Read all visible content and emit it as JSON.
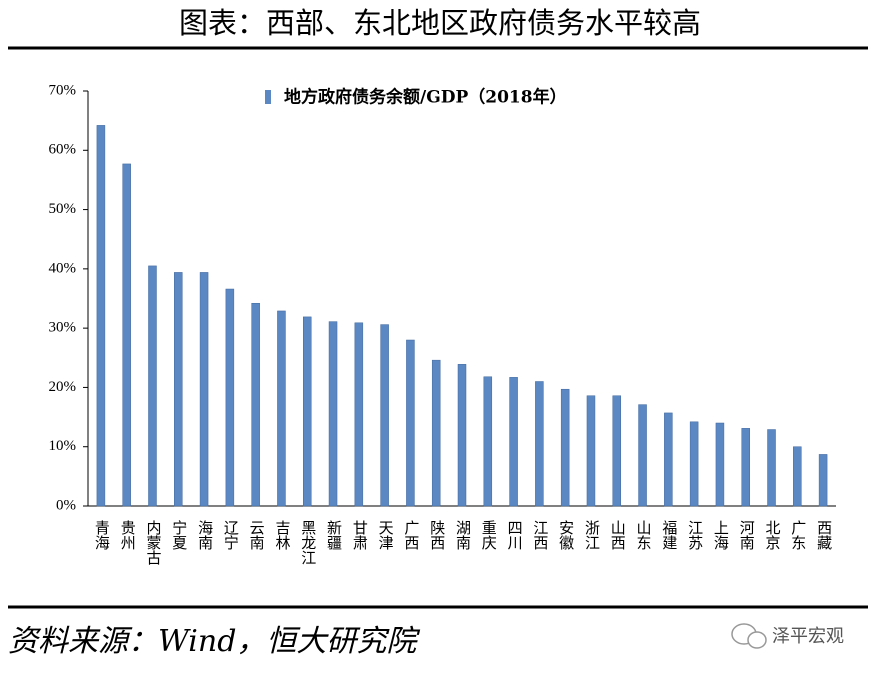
{
  "chart_data": {
    "type": "bar",
    "title": "图表：西部、东北地区政府债务水平较高",
    "categories": [
      "青海",
      "贵州",
      "内蒙古",
      "宁夏",
      "海南",
      "辽宁",
      "云南",
      "吉林",
      "黑龙江",
      "新疆",
      "甘肃",
      "天津",
      "广西",
      "陕西",
      "湖南",
      "重庆",
      "四川",
      "江西",
      "安徽",
      "浙江",
      "山西",
      "山东",
      "福建",
      "江苏",
      "上海",
      "河南",
      "北京",
      "广东",
      "西藏"
    ],
    "series": [
      {
        "name": "地方政府债务余额/GDP（2018年）",
        "color": "#5b87c2",
        "values": [
          64.2,
          57.7,
          40.5,
          39.4,
          39.4,
          36.6,
          34.2,
          32.9,
          31.9,
          31.1,
          30.9,
          30.6,
          28.0,
          24.6,
          23.9,
          21.8,
          21.7,
          21.0,
          19.7,
          18.6,
          18.6,
          17.1,
          15.7,
          14.2,
          14.0,
          13.1,
          12.9,
          10.0,
          8.7
        ]
      }
    ],
    "ylim": [
      0,
      70
    ],
    "yticks": [
      {
        "value": 0,
        "label": "0%"
      },
      {
        "value": 10,
        "label": "10%"
      },
      {
        "value": 20,
        "label": "20%"
      },
      {
        "value": 30,
        "label": "30%"
      },
      {
        "value": 40,
        "label": "40%"
      },
      {
        "value": 50,
        "label": "50%"
      },
      {
        "value": 60,
        "label": "60%"
      },
      {
        "value": 70,
        "label": "70%"
      }
    ],
    "source": "资料来源：Wind，恒大研究院",
    "watermark": "泽平宏观"
  }
}
